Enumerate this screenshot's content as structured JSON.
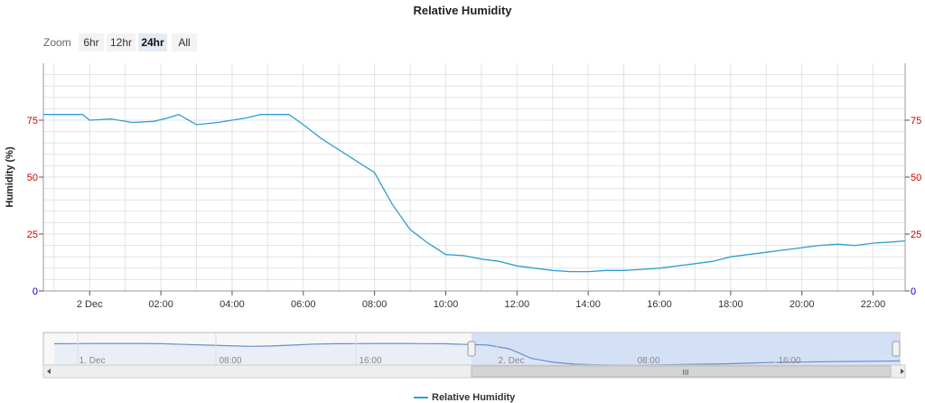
{
  "chart_data": {
    "type": "line",
    "title": "Relative Humidity",
    "ylabel": "Humidity (%)",
    "ylim": [
      0,
      100
    ],
    "y_ticks": [
      "0",
      "25",
      "50",
      "75"
    ],
    "x_ticks": [
      "2 Dec",
      "02:00",
      "04:00",
      "06:00",
      "08:00",
      "10:00",
      "12:00",
      "14:00",
      "16:00",
      "18:00",
      "20:00",
      "22:00"
    ],
    "series": [
      {
        "name": "Relative Humidity",
        "color": "#2f9fcf",
        "x": [
          -1.3,
          -0.2,
          0.0,
          0.6,
          1.2,
          1.8,
          2.2,
          2.5,
          3.0,
          3.6,
          4.0,
          4.4,
          4.8,
          5.2,
          5.6,
          6.0,
          6.5,
          7.0,
          7.5,
          8.0,
          8.5,
          9.0,
          9.5,
          10.0,
          10.5,
          11.0,
          11.5,
          12.0,
          12.5,
          13.0,
          13.5,
          14.0,
          14.5,
          15.0,
          15.5,
          16.0,
          16.5,
          17.0,
          17.5,
          18.0,
          18.5,
          19.0,
          19.5,
          20.0,
          20.5,
          21.0,
          21.5,
          22.0,
          22.5,
          22.9
        ],
        "y": [
          77.5,
          77.5,
          75,
          75.5,
          74,
          74.5,
          76,
          77.5,
          73,
          74,
          75,
          76,
          77.5,
          77.5,
          77.5,
          73,
          67,
          62,
          57,
          52,
          38,
          27,
          21,
          16,
          15.5,
          14,
          13,
          11,
          10,
          9,
          8.5,
          8.5,
          9,
          9,
          9.5,
          10,
          11,
          12,
          13,
          15,
          16,
          17,
          18,
          19,
          20,
          20.5,
          20,
          21,
          21.5,
          22
        ]
      }
    ]
  },
  "zoom": {
    "label": "Zoom",
    "buttons": [
      "6hr",
      "12hr",
      "24hr",
      "All"
    ],
    "active": "24hr"
  },
  "navigator": {
    "labels": [
      "1. Dec",
      "08:00",
      "16:00",
      "2. Dec",
      "08:00",
      "16:00"
    ],
    "scroll_grip": "III",
    "values": [
      76,
      76.5,
      77,
      77,
      77,
      76,
      74,
      72,
      70,
      68,
      69,
      72,
      75,
      76,
      76.5,
      77,
      77,
      76.5,
      76,
      74,
      72,
      60,
      30,
      18,
      12,
      10,
      9,
      9,
      10,
      11,
      12,
      13,
      15,
      17,
      18,
      19,
      20,
      20.5,
      21,
      22
    ]
  },
  "legend": {
    "label": "Relative Humidity"
  }
}
